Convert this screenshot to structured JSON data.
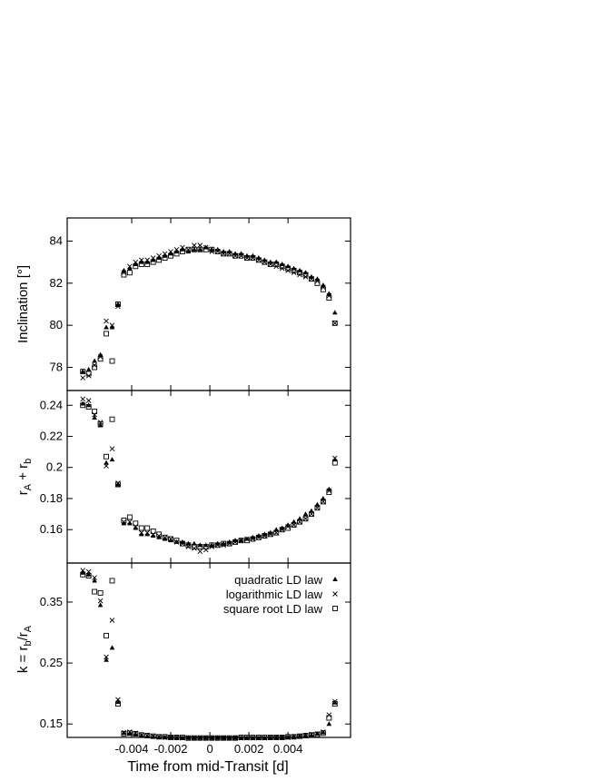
{
  "chart_data": [
    {
      "type": "scatter",
      "panel": "inclination",
      "ylabel": "Inclination  [°]",
      "ylim": [
        76.9,
        85.1
      ],
      "xlim": [
        -0.0073,
        0.0072
      ],
      "yticks": [
        78,
        80,
        82,
        84
      ],
      "ytick_labels": [
        "78",
        "80",
        "82",
        "84"
      ],
      "x": [
        -0.0065,
        -0.0062,
        -0.0059,
        -0.0056,
        -0.0053,
        -0.005,
        -0.0047,
        -0.0044,
        -0.0041,
        -0.0038,
        -0.0035,
        -0.0032,
        -0.0029,
        -0.0026,
        -0.0023,
        -0.002,
        -0.0017,
        -0.0014,
        -0.0011,
        -0.0008,
        -0.0005,
        -0.0002,
        0.0001,
        0.0004,
        0.0007,
        0.001,
        0.0013,
        0.0016,
        0.0019,
        0.0022,
        0.0025,
        0.0028,
        0.0031,
        0.0034,
        0.0037,
        0.004,
        0.0043,
        0.0046,
        0.0049,
        0.0052,
        0.0055,
        0.0058,
        0.0061,
        0.0064
      ],
      "series": [
        {
          "name": "quadratic LD law",
          "marker": "triangle",
          "values": [
            77.8,
            77.9,
            78.3,
            78.6,
            79.9,
            79.9,
            81.0,
            82.6,
            82.7,
            82.9,
            83.0,
            83.0,
            83.1,
            83.2,
            83.3,
            83.4,
            83.5,
            83.6,
            83.5,
            83.6,
            83.6,
            83.7,
            83.6,
            83.6,
            83.5,
            83.5,
            83.4,
            83.4,
            83.3,
            83.3,
            83.2,
            83.1,
            83.0,
            83.0,
            82.9,
            82.8,
            82.7,
            82.6,
            82.5,
            82.3,
            82.2,
            81.9,
            81.5,
            80.6
          ]
        },
        {
          "name": "logarithmic LD law",
          "marker": "cross",
          "values": [
            77.5,
            77.6,
            78.1,
            78.5,
            80.2,
            80.0,
            80.9,
            82.5,
            82.8,
            83.0,
            83.1,
            83.1,
            83.2,
            83.3,
            83.4,
            83.5,
            83.6,
            83.7,
            83.6,
            83.8,
            83.8,
            83.7,
            83.5,
            83.5,
            83.4,
            83.4,
            83.3,
            83.3,
            83.2,
            83.2,
            83.1,
            83.0,
            82.9,
            82.8,
            82.7,
            82.6,
            82.5,
            82.4,
            82.3,
            82.2,
            82.1,
            81.8,
            81.4,
            80.1
          ]
        },
        {
          "name": "square root LD law",
          "marker": "square",
          "values": [
            77.8,
            77.7,
            78.0,
            78.4,
            79.6,
            78.3,
            81.0,
            82.4,
            82.5,
            82.8,
            82.9,
            82.9,
            83.0,
            83.1,
            83.2,
            83.3,
            83.4,
            83.5,
            83.6,
            83.6,
            83.6,
            83.6,
            83.6,
            83.5,
            83.4,
            83.4,
            83.3,
            83.3,
            83.2,
            83.2,
            83.1,
            83.0,
            82.9,
            82.9,
            82.8,
            82.7,
            82.6,
            82.5,
            82.4,
            82.2,
            82.0,
            81.7,
            81.3,
            80.1
          ]
        }
      ]
    },
    {
      "type": "scatter",
      "panel": "sum of radii",
      "ylabel": "rA + rb",
      "ylim": [
        0.1385,
        0.2495
      ],
      "xlim": [
        -0.0073,
        0.0072
      ],
      "yticks": [
        0.16,
        0.18,
        0.2,
        0.22,
        0.24
      ],
      "ytick_labels": [
        "0.16",
        "0.18",
        "0.2",
        "0.22",
        "0.24"
      ],
      "x": [
        -0.0065,
        -0.0062,
        -0.0059,
        -0.0056,
        -0.0053,
        -0.005,
        -0.0047,
        -0.0044,
        -0.0041,
        -0.0038,
        -0.0035,
        -0.0032,
        -0.0029,
        -0.0026,
        -0.0023,
        -0.002,
        -0.0017,
        -0.0014,
        -0.0011,
        -0.0008,
        -0.0005,
        -0.0002,
        0.0001,
        0.0004,
        0.0007,
        0.001,
        0.0013,
        0.0016,
        0.0019,
        0.0022,
        0.0025,
        0.0028,
        0.0031,
        0.0034,
        0.0037,
        0.004,
        0.0043,
        0.0046,
        0.0049,
        0.0052,
        0.0055,
        0.0058,
        0.0061,
        0.0064
      ],
      "series": [
        {
          "name": "quadratic LD law",
          "marker": "triangle",
          "values": [
            0.241,
            0.24,
            0.232,
            0.227,
            0.203,
            0.205,
            0.189,
            0.164,
            0.164,
            0.161,
            0.157,
            0.157,
            0.156,
            0.155,
            0.154,
            0.153,
            0.152,
            0.152,
            0.151,
            0.151,
            0.15,
            0.15,
            0.15,
            0.151,
            0.151,
            0.152,
            0.153,
            0.153,
            0.154,
            0.155,
            0.156,
            0.157,
            0.158,
            0.16,
            0.161,
            0.163,
            0.165,
            0.167,
            0.17,
            0.172,
            0.176,
            0.18,
            0.186,
            0.205
          ]
        },
        {
          "name": "logarithmic LD law",
          "marker": "cross",
          "values": [
            0.244,
            0.243,
            0.234,
            0.229,
            0.201,
            0.212,
            0.19,
            0.165,
            0.165,
            0.162,
            0.158,
            0.158,
            0.157,
            0.156,
            0.155,
            0.154,
            0.152,
            0.151,
            0.149,
            0.148,
            0.146,
            0.147,
            0.149,
            0.15,
            0.15,
            0.151,
            0.152,
            0.153,
            0.154,
            0.154,
            0.155,
            0.156,
            0.157,
            0.158,
            0.16,
            0.162,
            0.163,
            0.165,
            0.167,
            0.17,
            0.174,
            0.178,
            0.185,
            0.206
          ]
        },
        {
          "name": "square root LD law",
          "marker": "square",
          "values": [
            0.24,
            0.239,
            0.236,
            0.228,
            0.207,
            0.231,
            0.189,
            0.166,
            0.168,
            0.164,
            0.161,
            0.161,
            0.159,
            0.157,
            0.155,
            0.154,
            0.153,
            0.151,
            0.15,
            0.149,
            0.149,
            0.149,
            0.15,
            0.15,
            0.151,
            0.151,
            0.152,
            0.153,
            0.153,
            0.154,
            0.155,
            0.156,
            0.157,
            0.158,
            0.16,
            0.161,
            0.163,
            0.165,
            0.167,
            0.17,
            0.174,
            0.178,
            0.184,
            0.203
          ]
        }
      ]
    },
    {
      "type": "scatter",
      "panel": "ratio of radii",
      "ylabel": "k = rb/rA",
      "ylim": [
        0.128,
        0.414
      ],
      "xlim": [
        -0.0073,
        0.0072
      ],
      "xlabel": "Time from mid-Transit [d]",
      "yticks": [
        0.15,
        0.25,
        0.35
      ],
      "ytick_labels": [
        "0.15",
        "0.25",
        "0.35"
      ],
      "xticks": [
        -0.004,
        -0.002,
        0,
        0.002,
        0.004
      ],
      "xtick_labels": [
        "-0.004",
        "-0.002",
        "0",
        "0.002",
        "0.004"
      ],
      "legend": [
        "quadratic LD law",
        "logarithmic LD law",
        "square root LD law"
      ],
      "legend_position": "top-right",
      "x": [
        -0.0065,
        -0.0062,
        -0.0059,
        -0.0056,
        -0.0053,
        -0.005,
        -0.0047,
        -0.0044,
        -0.0041,
        -0.0038,
        -0.0035,
        -0.0032,
        -0.0029,
        -0.0026,
        -0.0023,
        -0.002,
        -0.0017,
        -0.0014,
        -0.0011,
        -0.0008,
        -0.0005,
        -0.0002,
        0.0001,
        0.0004,
        0.0007,
        0.001,
        0.0013,
        0.0016,
        0.0019,
        0.0022,
        0.0025,
        0.0028,
        0.0031,
        0.0034,
        0.0037,
        0.004,
        0.0043,
        0.0046,
        0.0049,
        0.0052,
        0.0055,
        0.0058,
        0.0061,
        0.0064
      ],
      "series": [
        {
          "name": "quadratic LD law",
          "marker": "triangle",
          "values": [
            0.398,
            0.395,
            0.385,
            0.345,
            0.255,
            0.275,
            0.186,
            0.135,
            0.134,
            0.133,
            0.131,
            0.13,
            0.129,
            0.128,
            0.128,
            0.128,
            0.127,
            0.127,
            0.127,
            0.127,
            0.127,
            0.127,
            0.127,
            0.127,
            0.127,
            0.127,
            0.127,
            0.127,
            0.127,
            0.127,
            0.127,
            0.127,
            0.127,
            0.128,
            0.128,
            0.128,
            0.129,
            0.13,
            0.131,
            0.132,
            0.134,
            0.136,
            0.15,
            0.185
          ]
        },
        {
          "name": "logarithmic LD law",
          "marker": "cross",
          "values": [
            0.402,
            0.4,
            0.39,
            0.352,
            0.26,
            0.32,
            0.19,
            0.136,
            0.137,
            0.135,
            0.132,
            0.131,
            0.13,
            0.129,
            0.128,
            0.128,
            0.128,
            0.127,
            0.127,
            0.127,
            0.127,
            0.127,
            0.127,
            0.127,
            0.127,
            0.127,
            0.127,
            0.127,
            0.127,
            0.127,
            0.127,
            0.127,
            0.128,
            0.128,
            0.128,
            0.128,
            0.129,
            0.13,
            0.131,
            0.133,
            0.134,
            0.137,
            0.165,
            0.187
          ]
        },
        {
          "name": "square root LD law",
          "marker": "square",
          "values": [
            0.395,
            0.393,
            0.367,
            0.365,
            0.295,
            0.385,
            0.183,
            0.134,
            0.135,
            0.134,
            0.132,
            0.131,
            0.13,
            0.129,
            0.129,
            0.128,
            0.128,
            0.128,
            0.127,
            0.127,
            0.127,
            0.127,
            0.127,
            0.127,
            0.127,
            0.127,
            0.127,
            0.128,
            0.128,
            0.128,
            0.128,
            0.128,
            0.128,
            0.128,
            0.128,
            0.129,
            0.129,
            0.13,
            0.131,
            0.132,
            0.133,
            0.135,
            0.16,
            0.183
          ]
        }
      ]
    }
  ]
}
